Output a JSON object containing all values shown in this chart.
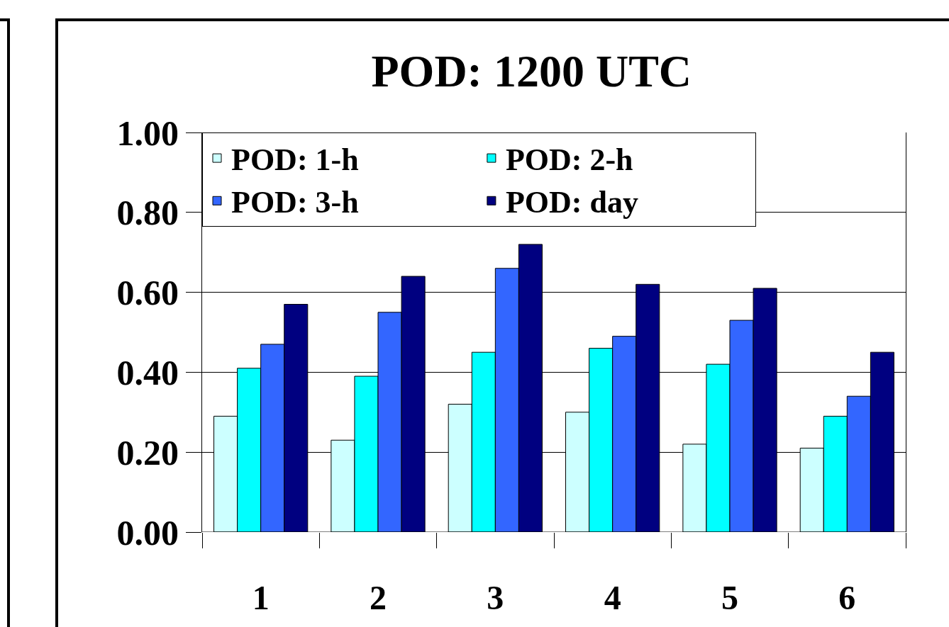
{
  "chart_data": {
    "type": "bar",
    "title": "POD: 1200 UTC",
    "categories": [
      "1",
      "2",
      "3",
      "4",
      "5",
      "6"
    ],
    "series": [
      {
        "name": "POD: 1-h",
        "color": "#ccffff",
        "values": [
          0.29,
          0.23,
          0.32,
          0.3,
          0.22,
          0.21
        ]
      },
      {
        "name": "POD: 2-h",
        "color": "#00ffff",
        "values": [
          0.41,
          0.39,
          0.45,
          0.46,
          0.42,
          0.29
        ]
      },
      {
        "name": "POD: 3-h",
        "color": "#3366ff",
        "values": [
          0.47,
          0.55,
          0.66,
          0.49,
          0.53,
          0.34
        ]
      },
      {
        "name": "POD: day",
        "color": "#000080",
        "values": [
          0.57,
          0.64,
          0.72,
          0.62,
          0.61,
          0.45
        ]
      }
    ],
    "ylim": [
      0,
      1
    ],
    "yticks": [
      {
        "value": 0,
        "label": "0.00"
      },
      {
        "value": 0.2,
        "label": "0.20"
      },
      {
        "value": 0.4,
        "label": "0.40"
      },
      {
        "value": 0.6,
        "label": "0.60"
      },
      {
        "value": 0.8,
        "label": "0.80"
      },
      {
        "value": 1,
        "label": "1.00"
      }
    ],
    "grid": "y",
    "legend": "top left"
  }
}
